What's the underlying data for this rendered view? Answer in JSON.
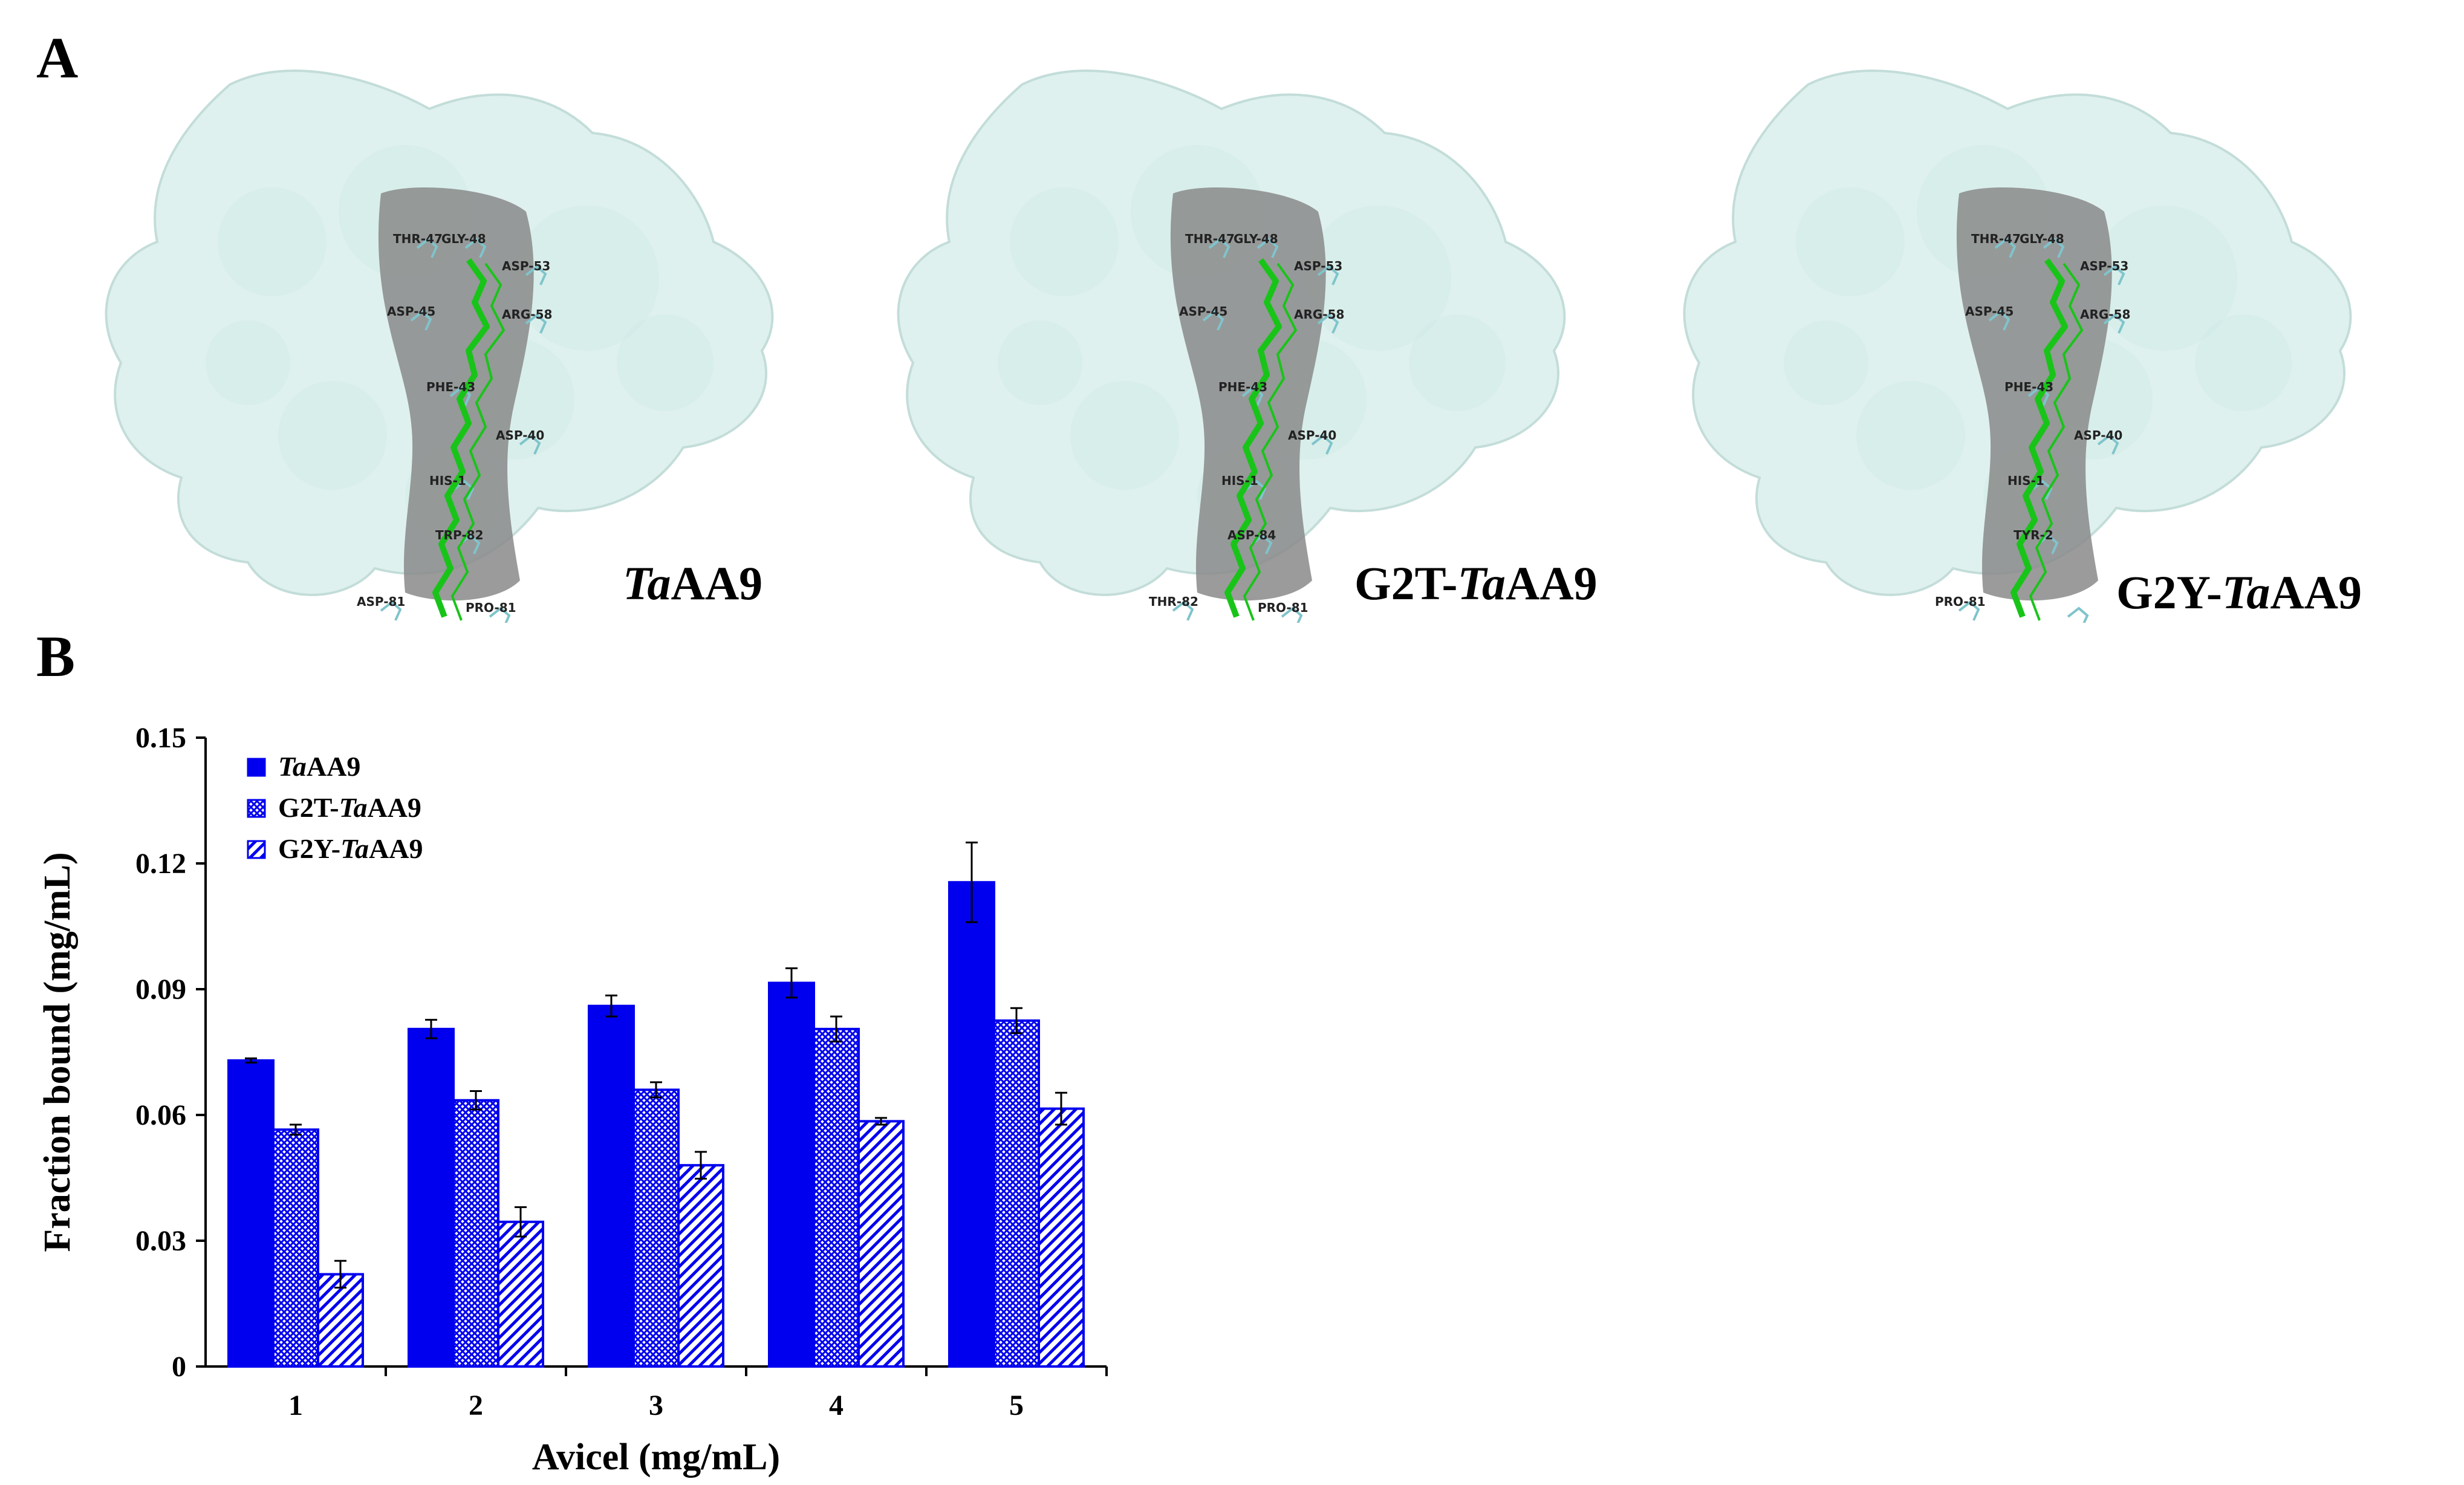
{
  "panels": {
    "a_label": "A",
    "b_label": "B"
  },
  "structures": [
    {
      "name_prefix": "",
      "name_italic": "Ta",
      "name_suffix": "AA9",
      "residues": [
        "THR-47",
        "GLY-48",
        "ASP-53",
        "ASP-45",
        "ARG-58",
        "PHE-43",
        "ASP-40",
        "HIS-1",
        "TRP-82",
        "ASP-81",
        "PRO-81"
      ]
    },
    {
      "name_prefix": "G2T-",
      "name_italic": "Ta",
      "name_suffix": "AA9",
      "residues": [
        "THR-47",
        "GLY-48",
        "ASP-53",
        "ASP-45",
        "ARG-58",
        "PHE-43",
        "ASP-40",
        "HIS-1",
        "ASP-84",
        "THR-82",
        "PRO-81"
      ]
    },
    {
      "name_prefix": "G2Y-",
      "name_italic": "Ta",
      "name_suffix": "AA9",
      "residues": [
        "THR-47",
        "GLY-48",
        "ASP-53",
        "ASP-45",
        "ARG-58",
        "PHE-43",
        "ASP-40",
        "HIS-1",
        "TYR-2",
        "PRO-81"
      ]
    }
  ],
  "colors": {
    "surface": "#dff1ee",
    "surface_edge": "#c3ddd9",
    "groove": "#8a8a8a",
    "ligand": "#19c419",
    "residue_stick": "#7fc4cc",
    "bar": "#0000ee"
  },
  "chart_data": {
    "type": "bar",
    "xlabel": "Avicel (mg/mL)",
    "ylabel": "Fraction bound (mg/mL)",
    "categories": [
      "1",
      "2",
      "3",
      "4",
      "5"
    ],
    "ylim": [
      0,
      0.15
    ],
    "yticks": [
      "0",
      "0.03",
      "0.06",
      "0.09",
      "0.12",
      "0.15"
    ],
    "legend_position": "top-left",
    "series": [
      {
        "name_prefix": "",
        "name_italic": "Ta",
        "name_suffix": "AA9",
        "pattern": "solid",
        "values": [
          0.073,
          0.0805,
          0.086,
          0.0915,
          0.1155
        ],
        "errors": [
          0.0005,
          0.0022,
          0.0025,
          0.0035,
          0.0095
        ]
      },
      {
        "name_prefix": "G2T-",
        "name_italic": "Ta",
        "name_suffix": "AA9",
        "pattern": "crosshatch",
        "values": [
          0.0565,
          0.0635,
          0.066,
          0.0805,
          0.0825
        ],
        "errors": [
          0.0012,
          0.0022,
          0.0018,
          0.003,
          0.003
        ]
      },
      {
        "name_prefix": "G2Y-",
        "name_italic": "Ta",
        "name_suffix": "AA9",
        "pattern": "diagonal",
        "values": [
          0.022,
          0.0345,
          0.048,
          0.0585,
          0.0615
        ],
        "errors": [
          0.0032,
          0.0035,
          0.0032,
          0.0008,
          0.0038
        ]
      }
    ]
  }
}
